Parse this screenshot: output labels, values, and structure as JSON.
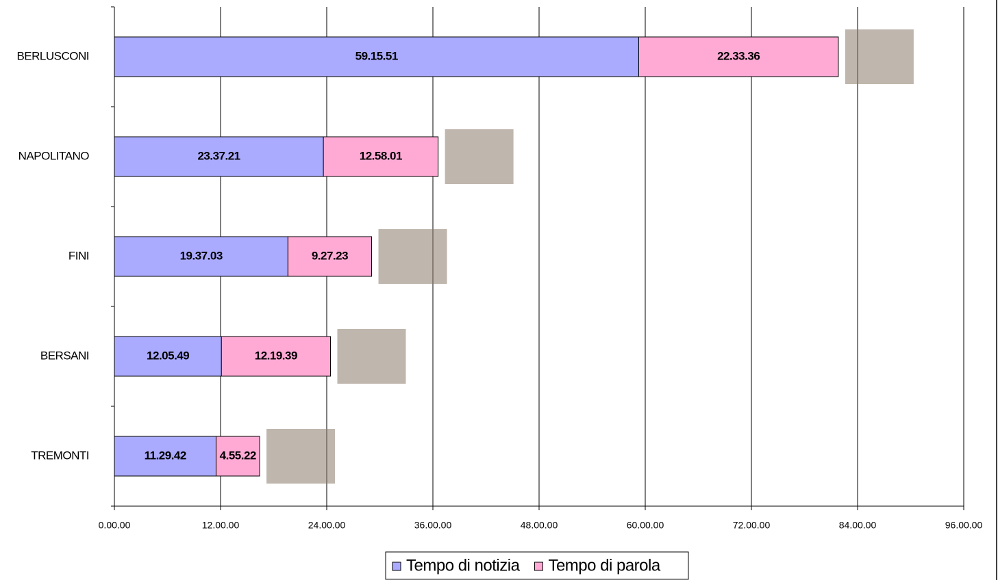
{
  "chart_data": {
    "type": "bar",
    "orientation": "horizontal",
    "stacked": true,
    "categories": [
      "BERLUSCONI",
      "NAPOLITANO",
      "FINI",
      "BERSANI",
      "TREMONTI"
    ],
    "series": [
      {
        "name": "Tempo di notizia",
        "color": "#aaaaff",
        "values": [
          59.264167,
          23.6225,
          19.6175,
          12.096944,
          11.495
        ],
        "value_labels": [
          "59.15.51",
          "23.37.21",
          "19.37.03",
          "12.05.49",
          "11.29.42"
        ]
      },
      {
        "name": "Tempo di parola",
        "color": "#ffaad5",
        "values": [
          22.56,
          12.966944,
          9.456389,
          12.3275,
          4.922778
        ],
        "value_labels": [
          "22.33.36",
          "12.58.01",
          "9.27.23",
          "12.19.39",
          "4.55.22"
        ]
      }
    ],
    "xlim": [
      0,
      96
    ],
    "xticks": [
      {
        "value": 0,
        "label": "0.00.00"
      },
      {
        "value": 12,
        "label": "12.00.00"
      },
      {
        "value": 24,
        "label": "24.00.00"
      },
      {
        "value": 36,
        "label": "36.00.00"
      },
      {
        "value": 48,
        "label": "48.00.00"
      },
      {
        "value": 60,
        "label": "60.00.00"
      },
      {
        "value": 72,
        "label": "72.00.00"
      },
      {
        "value": 84,
        "label": "84.00.00"
      },
      {
        "value": 96,
        "label": "96.00.00"
      }
    ],
    "grid": true,
    "legend": "bottom"
  }
}
